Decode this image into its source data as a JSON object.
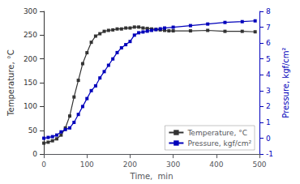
{
  "chart_data": {
    "type": "line",
    "xlabel": "Time,  min",
    "ylabel": "Temperature, °C",
    "y2label": "Pressure, kgf/cm²",
    "xlim": [
      0,
      500
    ],
    "xticks": [
      0,
      100,
      200,
      300,
      400,
      500
    ],
    "ylim": [
      0,
      300
    ],
    "yticks": [
      0,
      50,
      100,
      150,
      200,
      250,
      300
    ],
    "y2lim": [
      -1,
      8
    ],
    "y2ticks": [
      -1,
      0,
      1,
      2,
      3,
      4,
      5,
      6,
      7,
      8
    ],
    "grid": false,
    "legend": "lower right",
    "series": [
      {
        "name": "Temperature, °C",
        "color": "#333333",
        "marker": "square",
        "x": [
          0,
          10,
          20,
          30,
          40,
          50,
          60,
          70,
          80,
          90,
          100,
          110,
          120,
          130,
          140,
          150,
          160,
          170,
          180,
          190,
          200,
          210,
          220,
          230,
          240,
          250,
          260,
          270,
          280,
          290,
          300,
          340,
          380,
          420,
          460,
          490
        ],
        "values": [
          23,
          25,
          28,
          32,
          40,
          55,
          80,
          120,
          155,
          190,
          213,
          235,
          248,
          253,
          258,
          260,
          261,
          263,
          263,
          265,
          265,
          267,
          267,
          265,
          264,
          263,
          262,
          261,
          260,
          259,
          259,
          259,
          260,
          258,
          258,
          257
        ]
      },
      {
        "name": "Pressure, kgf/cm²",
        "color": "#0000bb",
        "marker": "square",
        "axis": "y2",
        "x": [
          0,
          10,
          20,
          30,
          40,
          50,
          60,
          70,
          80,
          90,
          100,
          110,
          120,
          130,
          140,
          150,
          160,
          170,
          180,
          190,
          200,
          210,
          220,
          230,
          240,
          250,
          260,
          270,
          280,
          300,
          340,
          380,
          420,
          460,
          490
        ],
        "values": [
          0.0,
          0.05,
          0.1,
          0.2,
          0.4,
          0.55,
          0.65,
          1.0,
          1.5,
          2.0,
          2.5,
          3.0,
          3.3,
          3.8,
          4.2,
          4.6,
          5.0,
          5.4,
          5.7,
          5.9,
          6.1,
          6.5,
          6.65,
          6.7,
          6.75,
          6.8,
          6.85,
          6.9,
          6.95,
          7.0,
          7.1,
          7.2,
          7.3,
          7.35,
          7.4
        ]
      }
    ]
  }
}
